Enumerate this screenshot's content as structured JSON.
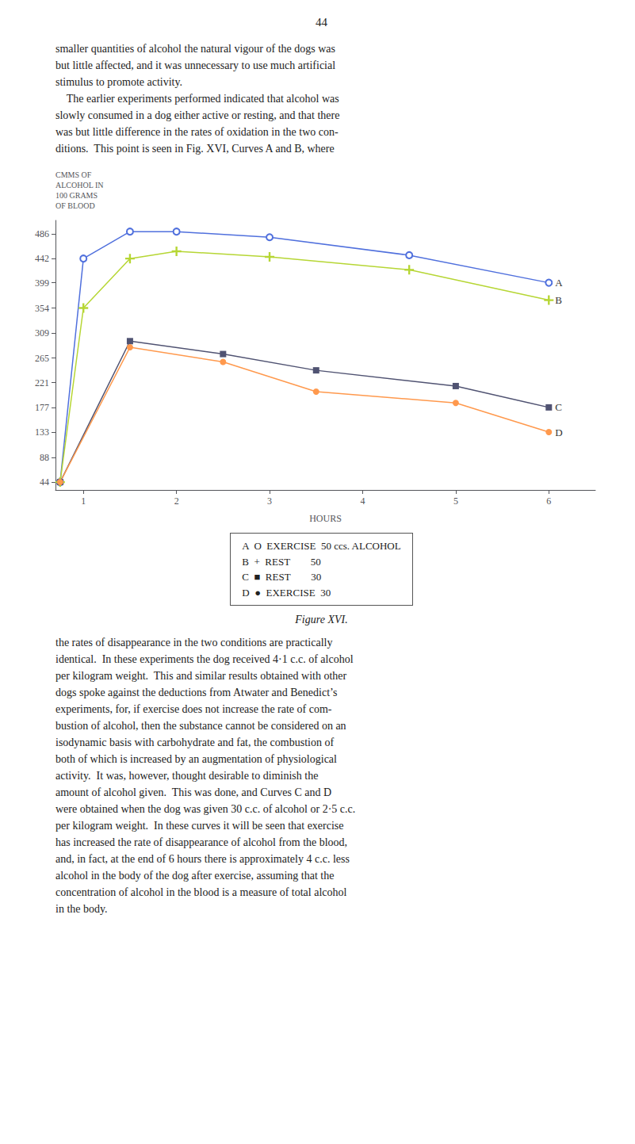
{
  "chart_data": {
    "type": "line",
    "title": "Figure XVI.",
    "page_number": "44",
    "text_above": "smaller quantities of alcohol the natural vigour of the dogs was\nbut little affected, and it was unnecessary to use much artificial\nstimulus to promote activity.\n    The earlier experiments performed indicated that alcohol was\nslowly consumed in a dog either active or resting, and that there\nwas but little difference in the rates of oxidation in the two con-\nditions.  This point is seen in Fig. XVI, Curves A and B, where",
    "text_below": "the rates of disappearance in the two conditions are practically\nidentical.  In these experiments the dog received 4·1 c.c. of alcohol\nper kilogram weight.  This and similar results obtained with other\ndogs spoke against the deductions from Atwater and Benedict’s\nexperiments, for, if exercise does not increase the rate of com-\nbustion of alcohol, then the substance cannot be considered on an\nisodynamic basis with carbohydrate and fat, the combustion of\nboth of which is increased by an augmentation of physiological\nactivity.  It was, however, thought desirable to diminish the\namount of alcohol given.  This was done, and Curves C and D\nwere obtained when the dog was given 30 c.c. of alcohol or 2·5 c.c.\nper kilogram weight.  In these curves it will be seen that exercise\nhas increased the rate of disappearance of alcohol from the blood,\nand, in fact, at the end of 6 hours there is approximately 4 c.c. less\nalcohol in the body of the dog after exercise, assuming that the\nconcentration of alcohol in the blood is a measure of total alcohol\nin the body.",
    "xlabel": "HOURS",
    "ylabel": "CMMS OF\nALCOHOL IN\n100 GRAMS\nOF BLOOD",
    "xlim": [
      0.7,
      6.5
    ],
    "ylim": [
      30,
      510
    ],
    "xticks": [
      1,
      2,
      3,
      4,
      5,
      6
    ],
    "yticks": [
      44,
      88,
      133,
      177,
      221,
      265,
      309,
      354,
      399,
      442,
      486
    ],
    "grid": false,
    "annotations": [
      "A  O  EXERCISE  50 ccs. ALCOHOL",
      "B  +  REST        50",
      "C  ■  REST        30",
      "D  ●  EXERCISE  30"
    ],
    "series": [
      {
        "name": "A",
        "marker": "open_circle",
        "x": [
          0.75,
          1.0,
          1.5,
          2.0,
          3.0,
          4.5,
          6.0
        ],
        "values": [
          44,
          442,
          490,
          490,
          480,
          448,
          399
        ]
      },
      {
        "name": "B",
        "marker": "plus",
        "x": [
          0.75,
          1.0,
          1.5,
          2.0,
          3.0,
          4.5,
          6.0
        ],
        "values": [
          44,
          354,
          442,
          455,
          445,
          422,
          368
        ]
      },
      {
        "name": "C",
        "marker": "square",
        "x": [
          0.75,
          1.5,
          2.5,
          3.5,
          5.0,
          6.0
        ],
        "values": [
          44,
          295,
          272,
          243,
          215,
          177
        ]
      },
      {
        "name": "D",
        "marker": "circle",
        "x": [
          0.75,
          1.5,
          2.5,
          3.5,
          5.0,
          6.0
        ],
        "values": [
          44,
          284,
          258,
          205,
          185,
          133
        ]
      }
    ]
  }
}
